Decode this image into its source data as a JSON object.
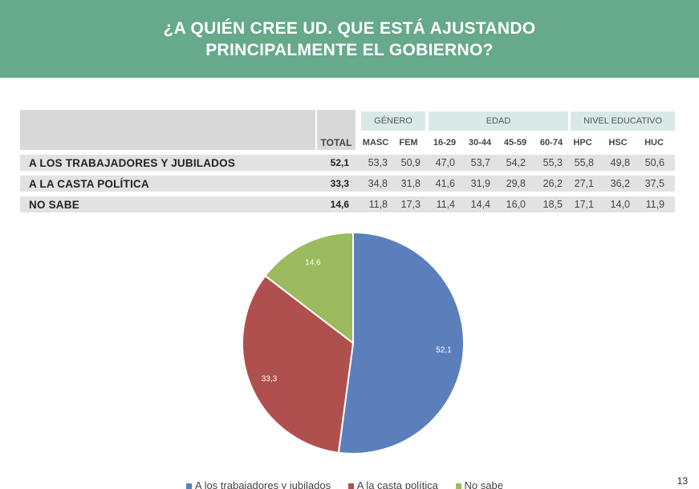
{
  "header": {
    "line1": "¿A QUIÉN CREE UD. QUE ESTÁ AJUSTANDO",
    "line2": "PRINCIPALMENTE EL GOBIERNO?"
  },
  "table": {
    "groups": {
      "genero": "GÉNERO",
      "edad": "EDAD",
      "nivel": "NIVEL EDUCATIVO"
    },
    "total_label": "TOTAL",
    "subheaders": [
      "MASC",
      "FEM",
      "16-29",
      "30-44",
      "45-59",
      "60-74",
      "HPC",
      "HSC",
      "HUC"
    ],
    "rows": [
      {
        "label": "A LOS TRABAJADORES Y JUBILADOS",
        "total": "52,1",
        "values": [
          "53,3",
          "50,9",
          "47,0",
          "53,7",
          "54,2",
          "55,3",
          "55,8",
          "49,8",
          "50,6"
        ]
      },
      {
        "label": "A LA CASTA POLÍTICA",
        "total": "33,3",
        "values": [
          "34,8",
          "31,8",
          "41,6",
          "31,9",
          "29,8",
          "26,2",
          "27,1",
          "36,2",
          "37,5"
        ]
      },
      {
        "label": "NO SABE",
        "total": "14,6",
        "values": [
          "11,8",
          "17,3",
          "11,4",
          "14,4",
          "16,0",
          "18,5",
          "17,1",
          "14,0",
          "11,9"
        ]
      }
    ]
  },
  "chart_data": {
    "type": "pie",
    "categories": [
      "A los trabajadores y jubilados",
      "A la casta política",
      "No sabe"
    ],
    "values": [
      52.1,
      33.3,
      14.6
    ],
    "data_labels": [
      "52,1",
      "33,3",
      "14,6"
    ],
    "colors": [
      "#5b7fbb",
      "#b0504e",
      "#9bbb5e"
    ],
    "legend_position": "bottom"
  },
  "page_number": "13"
}
